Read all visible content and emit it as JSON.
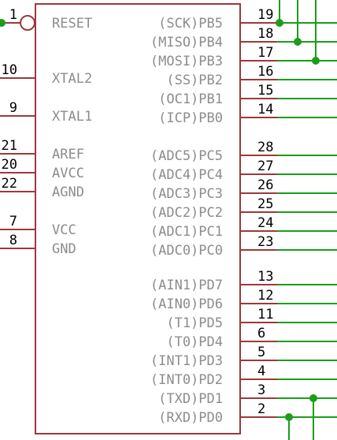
{
  "component": {
    "left_pins": [
      {
        "number": "1",
        "label": "RESET",
        "inverted": true
      },
      {
        "number": "10",
        "label": "XTAL2"
      },
      {
        "number": "9",
        "label": "XTAL1"
      },
      {
        "number": "21",
        "label": "AREF"
      },
      {
        "number": "20",
        "label": "AVCC"
      },
      {
        "number": "22",
        "label": "AGND"
      },
      {
        "number": "7",
        "label": "VCC"
      },
      {
        "number": "8",
        "label": "GND"
      }
    ],
    "right_pins": [
      {
        "number": "19",
        "label": "(SCK)PB5"
      },
      {
        "number": "18",
        "label": "(MISO)PB4"
      },
      {
        "number": "17",
        "label": "(MOSI)PB3"
      },
      {
        "number": "16",
        "label": "(SS)PB2"
      },
      {
        "number": "15",
        "label": "(OC1)PB1"
      },
      {
        "number": "14",
        "label": "(ICP)PB0"
      },
      {
        "number": "28",
        "label": "(ADC5)PC5"
      },
      {
        "number": "27",
        "label": "(ADC4)PC4"
      },
      {
        "number": "26",
        "label": "(ADC3)PC3"
      },
      {
        "number": "25",
        "label": "(ADC2)PC2"
      },
      {
        "number": "24",
        "label": "(ADC1)PC1"
      },
      {
        "number": "23",
        "label": "(ADC0)PC0"
      },
      {
        "number": "13",
        "label": "(AIN1)PD7"
      },
      {
        "number": "12",
        "label": "(AIN0)PD6"
      },
      {
        "number": "11",
        "label": "(T1)PD5"
      },
      {
        "number": "6",
        "label": "(T0)PD4"
      },
      {
        "number": "5",
        "label": "(INT1)PD3"
      },
      {
        "number": "4",
        "label": "(INT0)PD2"
      },
      {
        "number": "3",
        "label": "(TXD)PD1"
      },
      {
        "number": "2",
        "label": "(RXD)PD0"
      }
    ]
  },
  "colors": {
    "body_outline": "#9b3a3a",
    "wire": "#1a9e1a",
    "pin_number": "#000000",
    "pin_label": "#8c8c8c"
  }
}
